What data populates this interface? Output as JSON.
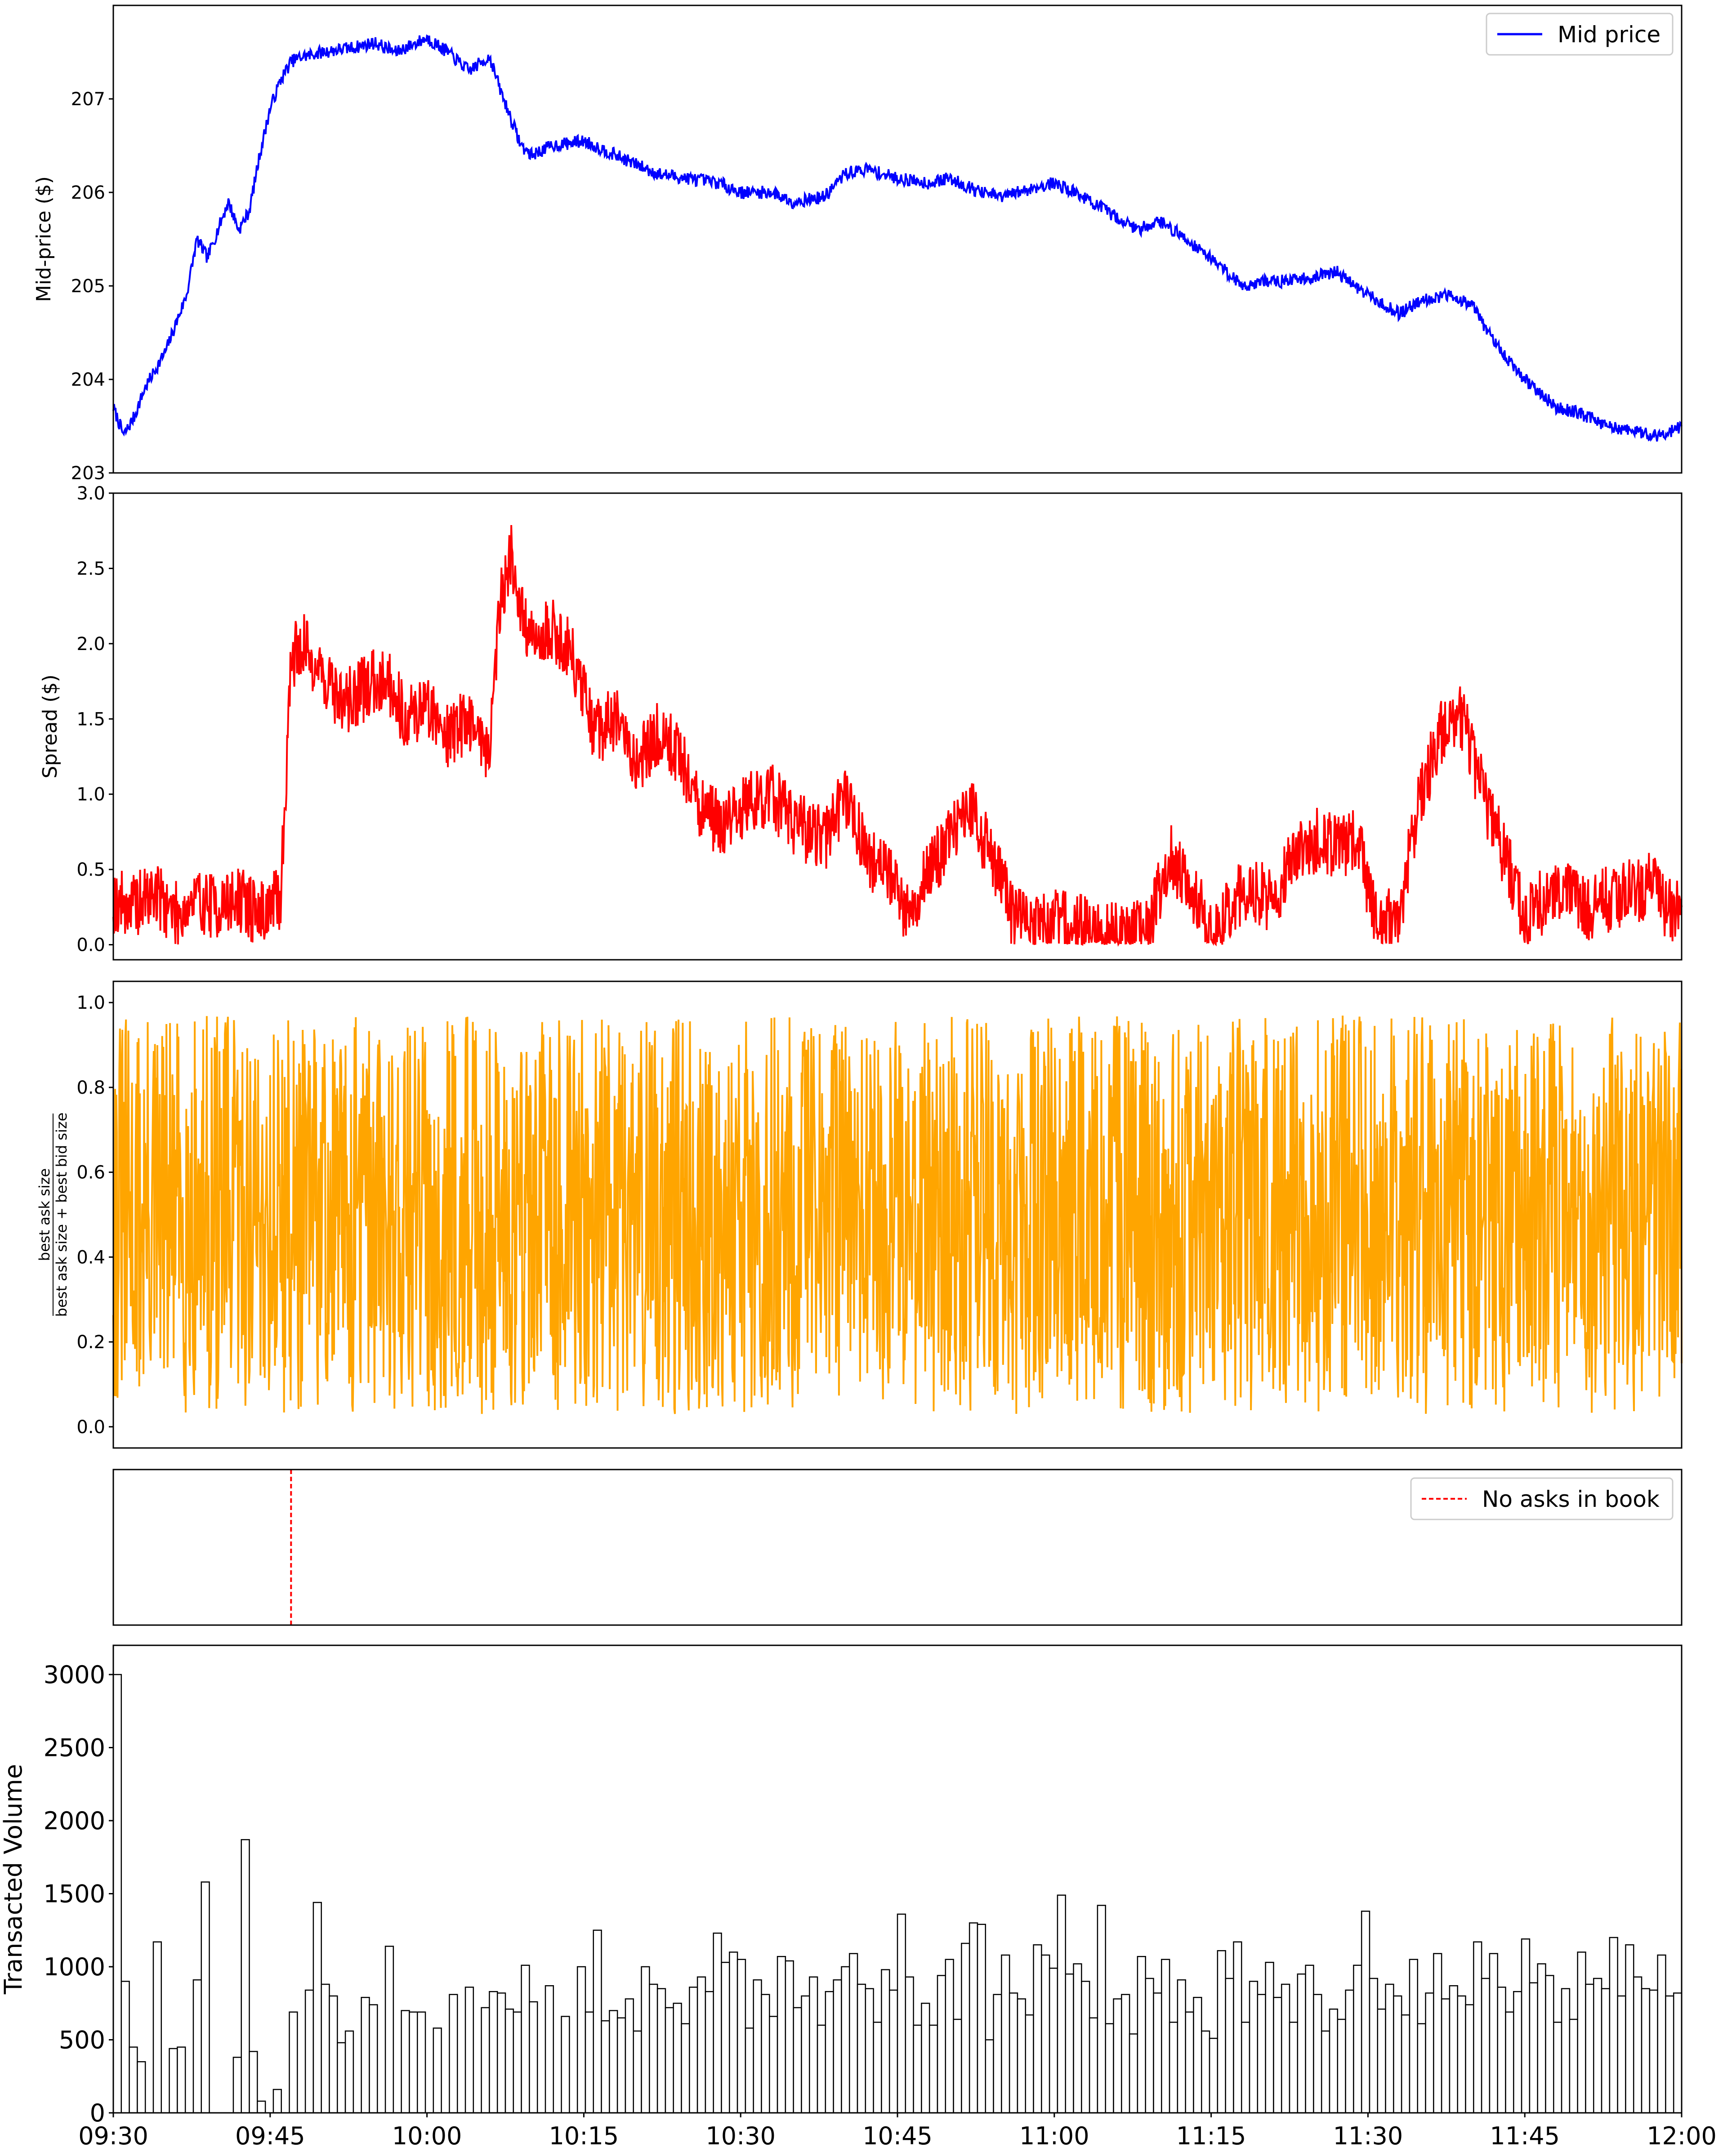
{
  "chart_data": [
    {
      "type": "line",
      "ylabel": "Mid-price ($)",
      "ylim": [
        203,
        208
      ],
      "yticks": [
        "203",
        "204",
        "205",
        "206",
        "207"
      ],
      "legend": {
        "placement": "top-right",
        "entries": [
          "Mid price"
        ]
      },
      "color": "#0000ff",
      "x_range": [
        "09:30",
        "12:00"
      ],
      "series": [
        {
          "name": "Mid price",
          "x": [
            "09:30",
            "09:31",
            "09:32",
            "09:33",
            "09:35",
            "09:37",
            "09:38",
            "09:39",
            "09:40",
            "09:41",
            "09:42",
            "09:43",
            "09:44",
            "09:45",
            "09:46",
            "09:47",
            "09:48",
            "09:50",
            "09:53",
            "09:55",
            "09:57",
            "10:00",
            "10:02",
            "10:04",
            "10:06",
            "10:07",
            "10:08",
            "10:09",
            "10:10",
            "10:12",
            "10:15",
            "10:18",
            "10:20",
            "10:22",
            "10:25",
            "10:28",
            "10:30",
            "10:33",
            "10:35",
            "10:38",
            "10:40",
            "10:42",
            "10:45",
            "10:48",
            "10:50",
            "10:53",
            "10:55",
            "10:58",
            "11:00",
            "11:02",
            "11:05",
            "11:08",
            "11:10",
            "11:12",
            "11:15",
            "11:18",
            "11:20",
            "11:22",
            "11:25",
            "11:27",
            "11:30",
            "11:33",
            "11:35",
            "11:38",
            "11:40",
            "11:42",
            "11:45",
            "11:48",
            "11:50",
            "11:53",
            "11:55",
            "11:58",
            "12:00"
          ],
          "y": [
            203.7,
            203.4,
            203.6,
            203.9,
            204.3,
            204.9,
            205.5,
            205.3,
            205.6,
            205.9,
            205.6,
            205.8,
            206.4,
            206.9,
            207.2,
            207.4,
            207.45,
            207.5,
            207.55,
            207.6,
            207.5,
            207.65,
            207.5,
            207.3,
            207.45,
            207.1,
            206.8,
            206.5,
            206.4,
            206.5,
            206.55,
            206.4,
            206.3,
            206.2,
            206.15,
            206.1,
            206.0,
            206.0,
            205.9,
            205.95,
            206.2,
            206.25,
            206.15,
            206.1,
            206.15,
            206.0,
            205.95,
            206.05,
            206.1,
            206.0,
            205.8,
            205.6,
            205.7,
            205.55,
            205.3,
            205.0,
            205.05,
            205.05,
            205.1,
            205.15,
            204.9,
            204.7,
            204.85,
            204.9,
            204.8,
            204.4,
            204.0,
            203.7,
            203.65,
            203.5,
            203.45,
            203.4,
            203.5
          ]
        }
      ]
    },
    {
      "type": "line",
      "ylabel": "Spread ($)",
      "ylim": [
        -0.1,
        3.0
      ],
      "yticks": [
        "0.0",
        "0.5",
        "1.0",
        "1.5",
        "2.0",
        "2.5",
        "3.0"
      ],
      "color": "#ff0000",
      "x_range": [
        "09:30",
        "12:00"
      ],
      "series": [
        {
          "x": [
            "09:30",
            "09:32",
            "09:34",
            "09:36",
            "09:38",
            "09:40",
            "09:42",
            "09:44",
            "09:46",
            "09:47",
            "09:48",
            "09:50",
            "09:52",
            "09:54",
            "09:56",
            "09:58",
            "10:00",
            "10:02",
            "10:04",
            "10:06",
            "10:07",
            "10:08",
            "10:09",
            "10:10",
            "10:12",
            "10:14",
            "10:16",
            "10:18",
            "10:20",
            "10:22",
            "10:24",
            "10:26",
            "10:28",
            "10:30",
            "10:33",
            "10:35",
            "10:38",
            "10:40",
            "10:42",
            "10:44",
            "10:46",
            "10:48",
            "10:50",
            "10:52",
            "10:54",
            "10:56",
            "10:58",
            "11:00",
            "11:03",
            "11:05",
            "11:07",
            "11:09",
            "11:11",
            "11:13",
            "11:15",
            "11:17",
            "11:19",
            "11:21",
            "11:23",
            "11:25",
            "11:27",
            "11:29",
            "11:31",
            "11:33",
            "11:35",
            "11:37",
            "11:39",
            "11:41",
            "11:43",
            "11:44",
            "11:45",
            "11:47",
            "11:49",
            "11:51",
            "11:53",
            "11:55",
            "11:57",
            "11:59",
            "12:00"
          ],
          "y": [
            0.3,
            0.25,
            0.35,
            0.2,
            0.3,
            0.25,
            0.3,
            0.2,
            0.3,
            1.9,
            2.0,
            1.8,
            1.6,
            1.7,
            1.8,
            1.5,
            1.6,
            1.4,
            1.5,
            1.3,
            2.3,
            2.6,
            2.2,
            2.0,
            2.1,
            1.9,
            1.4,
            1.5,
            1.2,
            1.4,
            1.3,
            0.9,
            0.8,
            0.9,
            1.0,
            0.8,
            0.7,
            1.0,
            0.6,
            0.5,
            0.2,
            0.5,
            0.7,
            0.9,
            0.6,
            0.2,
            0.1,
            0.15,
            0.1,
            0.05,
            0.1,
            0.1,
            0.6,
            0.4,
            0.05,
            0.3,
            0.35,
            0.3,
            0.6,
            0.7,
            0.65,
            0.7,
            0.1,
            0.2,
            1.0,
            1.4,
            1.5,
            1.0,
            0.6,
            0.4,
            0.2,
            0.3,
            0.35,
            0.25,
            0.3,
            0.35,
            0.4,
            0.2,
            0.25
          ]
        }
      ]
    },
    {
      "type": "line",
      "ylabel_numerator": "best ask size",
      "ylabel_denominator": "best ask size + best bid size",
      "ylim": [
        -0.05,
        1.05
      ],
      "yticks": [
        "0.0",
        "0.2",
        "0.4",
        "0.6",
        "0.8",
        "1.0"
      ],
      "color": "#ffa500",
      "x_range": [
        "09:30",
        "12:00"
      ],
      "series": [
        {
          "y_range": [
            0.0,
            1.0
          ]
        }
      ]
    },
    {
      "type": "line",
      "legend": {
        "placement": "top-right",
        "entries": [
          "No asks in book"
        ]
      },
      "color": "#ff0000",
      "x_range": [
        "09:30",
        "12:00"
      ],
      "series": [
        {
          "name": "No asks in book",
          "x": [
            "09:47"
          ]
        }
      ]
    },
    {
      "type": "bar",
      "ylabel": "Transacted Volume",
      "ylim": [
        0,
        3200
      ],
      "yticks": [
        "0",
        "500",
        "1000",
        "1500",
        "2000",
        "2500",
        "3000"
      ],
      "xticks": [
        "09:30",
        "09:45",
        "10:00",
        "10:15",
        "10:30",
        "10:45",
        "11:00",
        "11:15",
        "11:30",
        "11:45",
        "12:00"
      ],
      "x_range": [
        "09:30",
        "12:00"
      ],
      "series": [
        {
          "values": [
            3000,
            900,
            450,
            350,
            0,
            1170,
            0,
            440,
            450,
            0,
            910,
            1580,
            0,
            0,
            0,
            380,
            1870,
            420,
            80,
            0,
            160,
            0,
            690,
            0,
            840,
            1440,
            880,
            800,
            480,
            560,
            0,
            790,
            740,
            0,
            1140,
            0,
            700,
            690,
            690,
            0,
            580,
            0,
            810,
            0,
            860,
            0,
            720,
            830,
            820,
            710,
            690,
            1010,
            760,
            0,
            870,
            0,
            660,
            0,
            1000,
            690,
            1250,
            630,
            700,
            650,
            780,
            560,
            1000,
            880,
            850,
            720,
            750,
            610,
            860,
            930,
            830,
            1230,
            1030,
            1100,
            1050,
            580,
            910,
            810,
            660,
            1070,
            1040,
            720,
            800,
            930,
            600,
            830,
            910,
            1000,
            1090,
            880,
            850,
            620,
            980,
            840,
            1360,
            930,
            600,
            750,
            600,
            940,
            1050,
            640,
            1160,
            1300,
            1290,
            500,
            810,
            1080,
            820,
            780,
            670,
            1150,
            1080,
            990,
            1490,
            950,
            1020,
            900,
            650,
            1420,
            610,
            780,
            810,
            540,
            1070,
            920,
            820,
            1050,
            620,
            910,
            690,
            790,
            560,
            510,
            1110,
            920,
            1170,
            620,
            900,
            810,
            1030,
            790,
            880,
            620,
            950,
            1010,
            810,
            560,
            710,
            640,
            840,
            1010,
            1380,
            920,
            710,
            880,
            800,
            670,
            1050,
            610,
            820,
            1090,
            780,
            870,
            800,
            740,
            1170,
            920,
            1090,
            860,
            690,
            830,
            1190,
            890,
            1020,
            940,
            620,
            850,
            640,
            1100,
            880,
            920,
            850,
            1200,
            800,
            1150,
            930,
            850,
            840,
            1080,
            800,
            820
          ]
        }
      ]
    }
  ]
}
